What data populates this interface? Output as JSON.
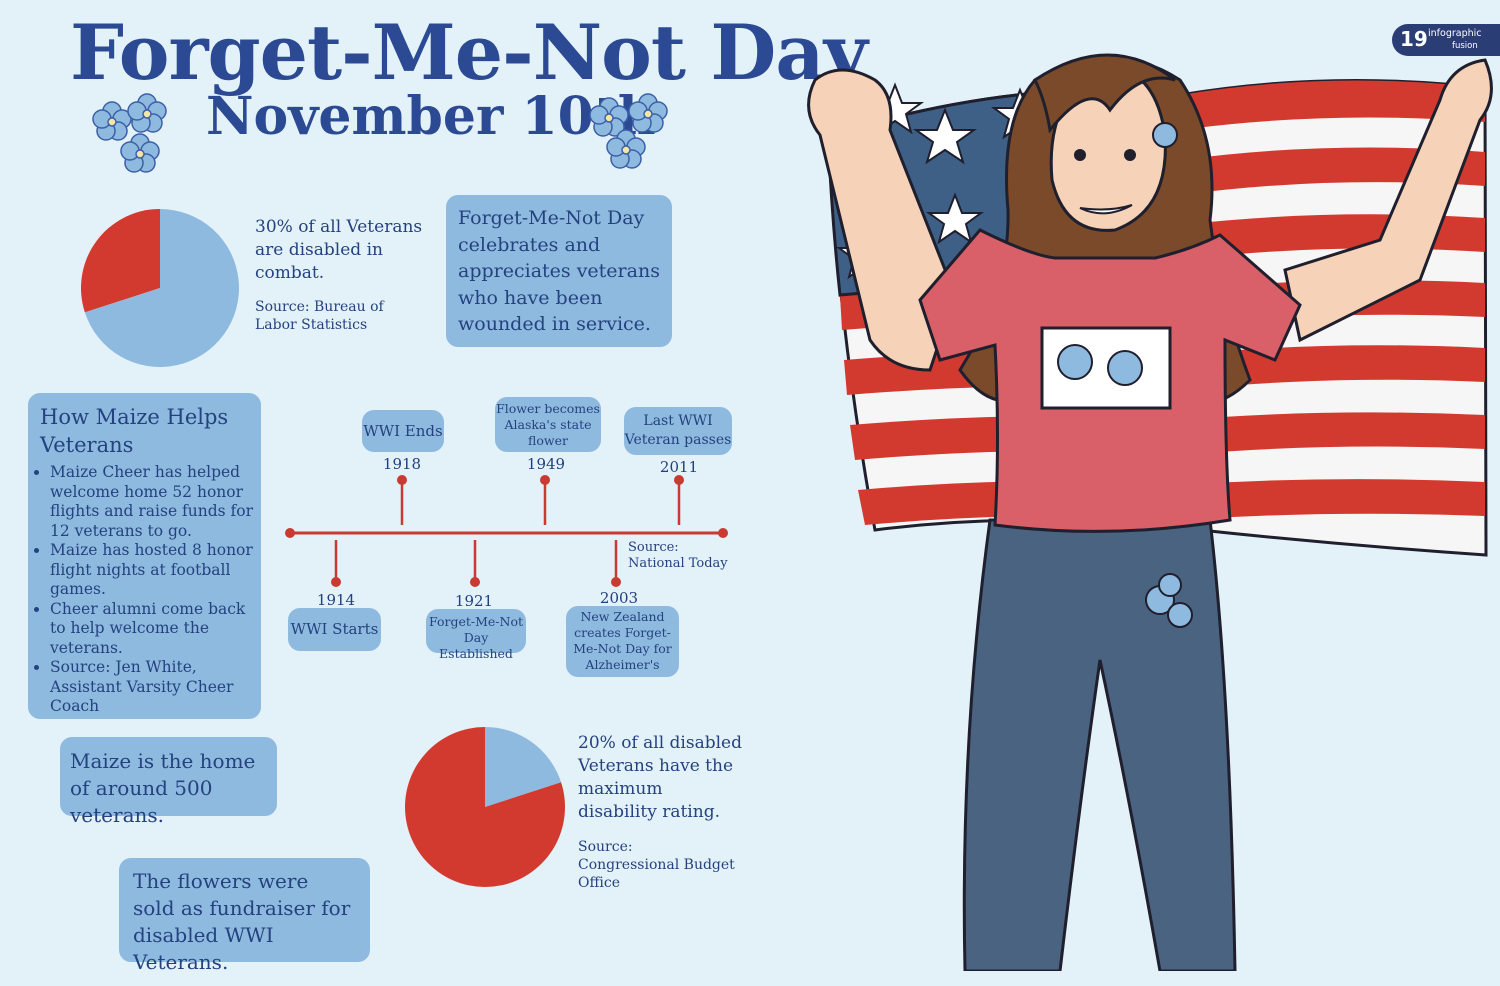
{
  "header": {
    "title": "Forget-Me-Not Day",
    "subtitle": "November 10th"
  },
  "page_badge": {
    "number": "19",
    "line1": "infographic",
    "line2": "fusion"
  },
  "colors": {
    "background": "#e3f1f8",
    "box": "#8fbadf",
    "red": "#d33a2f",
    "navy": "#2b4a93"
  },
  "stats": {
    "disabled_combat": {
      "text": "30% of all Veterans are disabled in combat.",
      "source": "Source: Bureau of Labor Statistics"
    },
    "max_rating": {
      "text": "20% of all disabled Veterans have the maximum disability rating.",
      "source": "Source: Congressional Budget Office"
    }
  },
  "about": "Forget-Me-Not Day celebrates and appreciates veterans who have been wounded in service.",
  "maize_help": {
    "title": "How Maize Helps Veterans",
    "items": [
      "Maize Cheer has helped welcome home 52 honor flights and raise funds for 12 veterans to go.",
      "Maize has hosted 8 honor flight nights at football games.",
      "Cheer alumni come back to help welcome the veterans.",
      "Source: Jen White, Assistant Varsity Cheer Coach"
    ]
  },
  "maize_home": "Maize is the home of around 500 veterans.",
  "flowers_sold": "The flowers were sold as fundraiser for disabled WWI Veterans.",
  "timeline": {
    "source": "Source: National Today",
    "events": [
      {
        "year": "1914",
        "label": "WWI Starts"
      },
      {
        "year": "1918",
        "label": "WWI Ends"
      },
      {
        "year": "1921",
        "label": "Forget-Me-Not Day Established"
      },
      {
        "year": "1949",
        "label": "Flower becomes Alaska's state flower"
      },
      {
        "year": "2003",
        "label": "New Zealand creates Forget-Me-Not Day for Alzheimer's"
      },
      {
        "year": "2011",
        "label": "Last WWI Veteran passes"
      }
    ]
  },
  "chart_data": [
    {
      "type": "pie",
      "slices": [
        {
          "label": "disabled in combat",
          "value": 30,
          "color": "#d33a2f"
        },
        {
          "label": "other",
          "value": 70,
          "color": "#8fbadf"
        }
      ]
    },
    {
      "type": "pie",
      "slices": [
        {
          "label": "maximum disability rating",
          "value": 20,
          "color": "#8fbadf"
        },
        {
          "label": "other",
          "value": 80,
          "color": "#d33a2f"
        }
      ]
    }
  ]
}
